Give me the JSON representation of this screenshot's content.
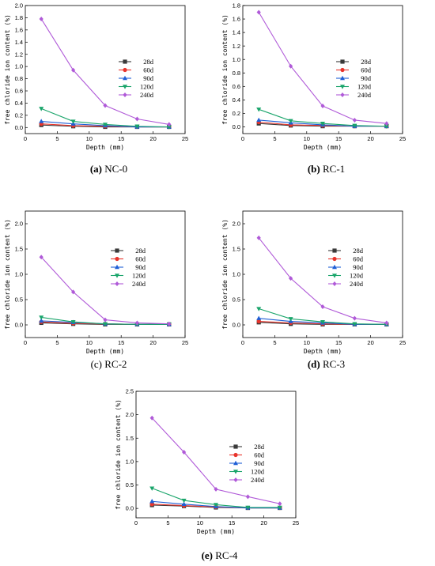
{
  "chart_data": [
    {
      "type": "line",
      "caption_tag": "(a)",
      "caption_name": "NC-0",
      "xlabel": "Depth (mm)",
      "ylabel": "free chloride ion content (%)",
      "xlim": [
        0,
        25
      ],
      "ylim": [
        -0.1,
        2.0
      ],
      "xticks": [
        "0",
        "5",
        "10",
        "15",
        "20",
        "25"
      ],
      "yticks": [
        "0.0",
        "0.2",
        "0.4",
        "0.6",
        "0.8",
        "1.0",
        "1.2",
        "1.4",
        "1.6",
        "1.8",
        "2.0"
      ],
      "x": [
        2.5,
        7.5,
        12.5,
        17.5,
        22.5
      ],
      "series": [
        {
          "name": "28d",
          "values": [
            0.04,
            0.02,
            0.01,
            0.01,
            0.01
          ]
        },
        {
          "name": "60d",
          "values": [
            0.06,
            0.03,
            0.02,
            0.01,
            0.01
          ]
        },
        {
          "name": "90d",
          "values": [
            0.1,
            0.06,
            0.03,
            0.01,
            0.01
          ]
        },
        {
          "name": "120d",
          "values": [
            0.31,
            0.1,
            0.05,
            0.02,
            0.01
          ]
        },
        {
          "name": "240d",
          "values": [
            1.78,
            0.94,
            0.36,
            0.14,
            0.05
          ]
        }
      ]
    },
    {
      "type": "line",
      "caption_tag": "(b)",
      "caption_name": "RC-1",
      "xlabel": "Depth (mm)",
      "ylabel": "free chloride ion content (%)",
      "xlim": [
        0,
        25
      ],
      "ylim": [
        -0.1,
        1.8
      ],
      "xticks": [
        "0",
        "5",
        "10",
        "15",
        "20",
        "25"
      ],
      "yticks": [
        "0.0",
        "0.2",
        "0.4",
        "0.6",
        "0.8",
        "1.0",
        "1.2",
        "1.4",
        "1.6",
        "1.8"
      ],
      "x": [
        2.5,
        7.5,
        12.5,
        17.5,
        22.5
      ],
      "series": [
        {
          "name": "28d",
          "values": [
            0.05,
            0.02,
            0.01,
            0.01,
            0.01
          ]
        },
        {
          "name": "60d",
          "values": [
            0.07,
            0.03,
            0.02,
            0.01,
            0.01
          ]
        },
        {
          "name": "90d",
          "values": [
            0.1,
            0.06,
            0.03,
            0.01,
            0.01
          ]
        },
        {
          "name": "120d",
          "values": [
            0.26,
            0.09,
            0.05,
            0.02,
            0.01
          ]
        },
        {
          "name": "240d",
          "values": [
            1.7,
            0.9,
            0.31,
            0.1,
            0.05
          ]
        }
      ]
    },
    {
      "type": "line",
      "caption_tag": "(c)",
      "caption_name": "RC-2",
      "xlabel": "Depth (mm)",
      "ylabel": "free chloride ion content (%)",
      "xlim": [
        0,
        25
      ],
      "ylim": [
        -0.25,
        2.25
      ],
      "xticks": [
        "0",
        "5",
        "10",
        "15",
        "20",
        "25"
      ],
      "yticks": [
        "0.0",
        "0.5",
        "1.0",
        "1.5",
        "2.0"
      ],
      "x": [
        2.5,
        7.5,
        12.5,
        17.5,
        22.5
      ],
      "series": [
        {
          "name": "28d",
          "values": [
            0.04,
            0.02,
            0.01,
            0.01,
            0.01
          ]
        },
        {
          "name": "60d",
          "values": [
            0.06,
            0.03,
            0.02,
            0.01,
            0.01
          ]
        },
        {
          "name": "90d",
          "values": [
            0.08,
            0.05,
            0.02,
            0.01,
            0.01
          ]
        },
        {
          "name": "120d",
          "values": [
            0.15,
            0.06,
            0.02,
            0.01,
            0.01
          ]
        },
        {
          "name": "240d",
          "values": [
            1.34,
            0.65,
            0.1,
            0.04,
            0.02
          ]
        }
      ]
    },
    {
      "type": "line",
      "caption_tag": "(d)",
      "caption_name": "RC-3",
      "xlabel": "Depth (mm)",
      "ylabel": "free chloride ion content (%)",
      "xlim": [
        0,
        25
      ],
      "ylim": [
        -0.25,
        2.25
      ],
      "xticks": [
        "0",
        "5",
        "10",
        "15",
        "20",
        "25"
      ],
      "yticks": [
        "0.0",
        "0.5",
        "1.0",
        "1.5",
        "2.0"
      ],
      "x": [
        2.5,
        7.5,
        12.5,
        17.5,
        22.5
      ],
      "series": [
        {
          "name": "28d",
          "values": [
            0.05,
            0.02,
            0.01,
            0.01,
            0.01
          ]
        },
        {
          "name": "60d",
          "values": [
            0.07,
            0.04,
            0.02,
            0.01,
            0.01
          ]
        },
        {
          "name": "90d",
          "values": [
            0.13,
            0.07,
            0.04,
            0.01,
            0.01
          ]
        },
        {
          "name": "120d",
          "values": [
            0.32,
            0.12,
            0.06,
            0.02,
            0.01
          ]
        },
        {
          "name": "240d",
          "values": [
            1.72,
            0.92,
            0.36,
            0.13,
            0.04
          ]
        }
      ]
    },
    {
      "type": "line",
      "caption_tag": "(e)",
      "caption_name": "RC-4",
      "xlabel": "Depth (mm)",
      "ylabel": "free chloride ion content (%)",
      "xlim": [
        0,
        25
      ],
      "ylim": [
        -0.2,
        2.5
      ],
      "xticks": [
        "0",
        "5",
        "10",
        "15",
        "20",
        "25"
      ],
      "yticks": [
        "0.0",
        "0.5",
        "1.0",
        "1.5",
        "2.0",
        "2.5"
      ],
      "x": [
        2.5,
        7.5,
        12.5,
        17.5,
        22.5
      ],
      "series": [
        {
          "name": "28d",
          "values": [
            0.07,
            0.05,
            0.02,
            0.01,
            0.01
          ]
        },
        {
          "name": "60d",
          "values": [
            0.09,
            0.06,
            0.03,
            0.01,
            0.01
          ]
        },
        {
          "name": "90d",
          "values": [
            0.15,
            0.09,
            0.04,
            0.01,
            0.01
          ]
        },
        {
          "name": "120d",
          "values": [
            0.43,
            0.17,
            0.08,
            0.02,
            0.02
          ]
        },
        {
          "name": "240d",
          "values": [
            1.93,
            1.2,
            0.41,
            0.25,
            0.1
          ]
        }
      ]
    }
  ],
  "series_colors": [
    "#3a3a3a",
    "#e8342c",
    "#1f5fd6",
    "#1aa56b",
    "#b05ad8"
  ],
  "series_markers": [
    "square",
    "circle",
    "triangle-up",
    "triangle-down",
    "diamond"
  ]
}
